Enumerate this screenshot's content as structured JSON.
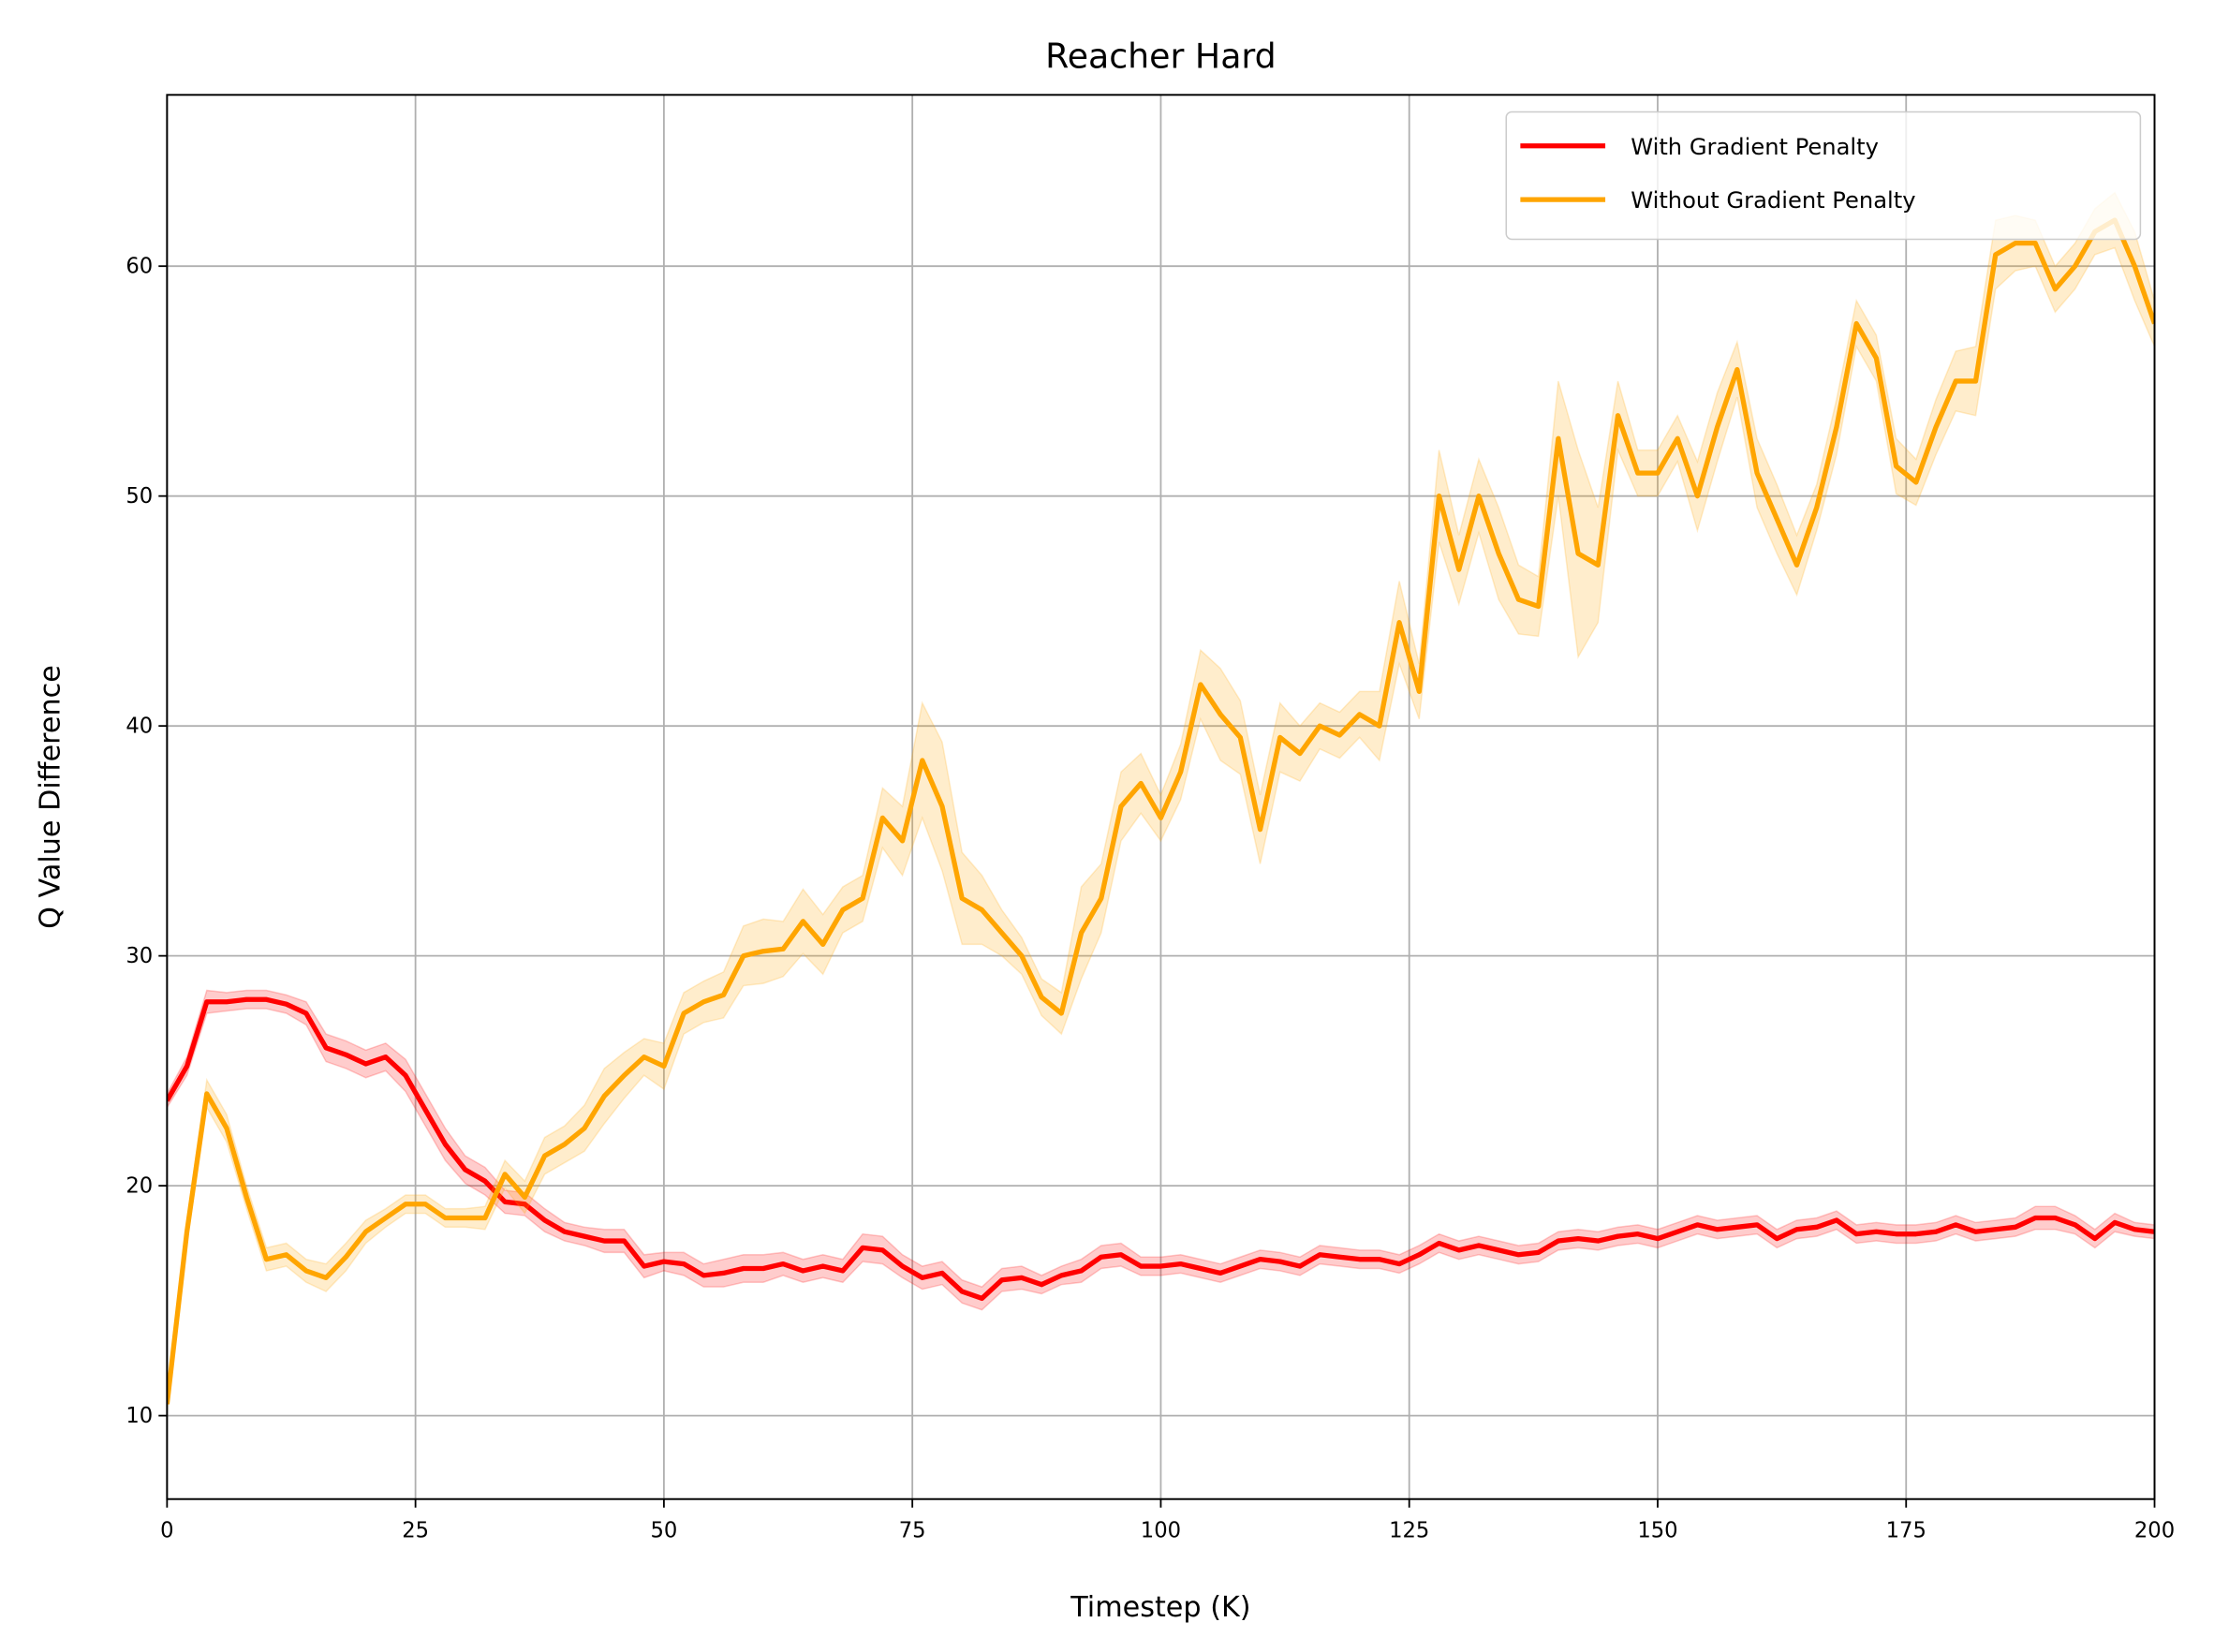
{
  "chart_data": {
    "type": "line",
    "title": "Reacher Hard",
    "x_label": "Timestep (K)",
    "y_label": "Q Value Difference",
    "x": [
      0,
      2,
      4,
      6,
      8,
      10,
      12,
      14,
      16,
      18,
      20,
      22,
      24,
      26,
      28,
      30,
      32,
      34,
      36,
      38,
      40,
      42,
      44,
      46,
      48,
      50,
      52,
      54,
      56,
      58,
      60,
      62,
      64,
      66,
      68,
      70,
      72,
      74,
      76,
      78,
      80,
      82,
      84,
      86,
      88,
      90,
      92,
      94,
      96,
      98,
      100,
      102,
      104,
      106,
      108,
      110,
      112,
      114,
      116,
      118,
      120,
      122,
      124,
      126,
      128,
      130,
      132,
      134,
      136,
      138,
      140,
      142,
      144,
      146,
      148,
      150,
      152,
      154,
      156,
      158,
      160,
      162,
      164,
      166,
      168,
      170,
      172,
      174,
      176,
      178,
      180,
      182,
      184,
      186,
      188,
      190,
      192,
      194,
      196,
      198,
      200
    ],
    "series": [
      {
        "name": "With Gradient Penalty",
        "color": "#ff0000",
        "values": [
          23.7,
          25.2,
          28.0,
          28.0,
          28.1,
          28.1,
          27.9,
          27.5,
          26.0,
          25.7,
          25.3,
          25.6,
          24.8,
          23.3,
          21.8,
          20.7,
          20.2,
          19.3,
          19.2,
          18.5,
          18.0,
          17.8,
          17.6,
          17.6,
          16.5,
          16.7,
          16.6,
          16.1,
          16.2,
          16.4,
          16.4,
          16.6,
          16.3,
          16.5,
          16.3,
          17.3,
          17.2,
          16.5,
          16.0,
          16.2,
          15.4,
          15.1,
          15.9,
          16.0,
          15.7,
          16.1,
          16.3,
          16.9,
          17.0,
          16.5,
          16.5,
          16.6,
          16.4,
          16.2,
          16.5,
          16.8,
          16.7,
          16.5,
          17.0,
          16.9,
          16.8,
          16.8,
          16.6,
          17.0,
          17.5,
          17.2,
          17.4,
          17.2,
          17.0,
          17.1,
          17.6,
          17.7,
          17.6,
          17.8,
          17.9,
          17.7,
          18.0,
          18.3,
          18.1,
          18.2,
          18.3,
          17.7,
          18.1,
          18.2,
          18.5,
          17.9,
          18.0,
          17.9,
          17.9,
          18.0,
          18.3,
          18.0,
          18.1,
          18.2,
          18.6,
          18.6,
          18.3,
          17.7,
          18.4,
          18.1,
          18.0
        ],
        "error": [
          0.3,
          0.4,
          0.5,
          0.4,
          0.4,
          0.4,
          0.4,
          0.5,
          0.6,
          0.6,
          0.6,
          0.6,
          0.7,
          0.7,
          0.7,
          0.6,
          0.6,
          0.5,
          0.5,
          0.5,
          0.4,
          0.4,
          0.5,
          0.5,
          0.5,
          0.4,
          0.5,
          0.5,
          0.6,
          0.6,
          0.6,
          0.5,
          0.5,
          0.5,
          0.5,
          0.6,
          0.6,
          0.5,
          0.5,
          0.5,
          0.5,
          0.5,
          0.5,
          0.5,
          0.4,
          0.4,
          0.5,
          0.5,
          0.5,
          0.4,
          0.4,
          0.4,
          0.4,
          0.4,
          0.4,
          0.4,
          0.4,
          0.4,
          0.4,
          0.4,
          0.4,
          0.4,
          0.4,
          0.4,
          0.4,
          0.4,
          0.4,
          0.4,
          0.4,
          0.4,
          0.4,
          0.4,
          0.4,
          0.4,
          0.4,
          0.4,
          0.4,
          0.4,
          0.4,
          0.4,
          0.4,
          0.4,
          0.4,
          0.4,
          0.4,
          0.4,
          0.4,
          0.4,
          0.4,
          0.4,
          0.4,
          0.4,
          0.4,
          0.4,
          0.5,
          0.5,
          0.4,
          0.4,
          0.4,
          0.3,
          0.3
        ]
      },
      {
        "name": "Without Gradient Penalty",
        "color": "#ffa500",
        "values": [
          10.5,
          18.0,
          24.0,
          22.5,
          19.5,
          16.8,
          17.0,
          16.3,
          16.0,
          16.9,
          18.0,
          18.6,
          19.2,
          19.2,
          18.6,
          18.6,
          18.6,
          20.5,
          19.5,
          21.3,
          21.8,
          22.5,
          23.9,
          24.8,
          25.6,
          25.2,
          27.5,
          28.0,
          28.3,
          30.0,
          30.2,
          30.3,
          31.5,
          30.5,
          32.0,
          32.5,
          36.0,
          35.0,
          38.5,
          36.5,
          32.5,
          32.0,
          31.0,
          30.0,
          28.2,
          27.5,
          31.0,
          32.5,
          36.5,
          37.5,
          36.0,
          38.0,
          41.8,
          40.5,
          39.5,
          35.5,
          39.5,
          38.8,
          40.0,
          39.6,
          40.5,
          40.0,
          44.5,
          41.5,
          50.0,
          46.8,
          50.0,
          47.5,
          45.5,
          45.2,
          52.5,
          47.5,
          47.0,
          53.5,
          51.0,
          51.0,
          52.5,
          50.0,
          53.0,
          55.5,
          51.0,
          49.0,
          47.0,
          49.5,
          53.0,
          57.5,
          56.0,
          51.3,
          50.6,
          53.0,
          55.0,
          55.0,
          60.5,
          61.0,
          61.0,
          59.0,
          60.0,
          61.5,
          62.0,
          60.0,
          57.5
        ],
        "error": [
          0.3,
          0.5,
          0.6,
          0.6,
          0.5,
          0.5,
          0.5,
          0.5,
          0.6,
          0.6,
          0.5,
          0.4,
          0.4,
          0.4,
          0.4,
          0.4,
          0.5,
          0.6,
          0.7,
          0.8,
          0.8,
          1.0,
          1.2,
          1.0,
          0.8,
          1.0,
          0.9,
          0.9,
          1.0,
          1.3,
          1.4,
          1.2,
          1.4,
          1.3,
          1.0,
          1.0,
          1.3,
          1.5,
          2.5,
          2.8,
          2.0,
          1.5,
          1.0,
          0.8,
          0.8,
          0.9,
          2.0,
          1.5,
          1.5,
          1.3,
          1.0,
          1.2,
          1.5,
          2.0,
          1.6,
          1.5,
          1.5,
          1.2,
          1.0,
          1.0,
          1.0,
          1.5,
          1.8,
          1.2,
          2.0,
          1.5,
          1.6,
          2.0,
          1.5,
          1.3,
          2.5,
          4.5,
          2.5,
          1.5,
          1.0,
          1.0,
          1.0,
          1.5,
          1.5,
          1.2,
          1.5,
          1.5,
          1.3,
          1.0,
          1.2,
          1.0,
          1.0,
          1.2,
          1.0,
          1.2,
          1.3,
          1.5,
          1.5,
          1.2,
          1.0,
          1.0,
          1.0,
          1.0,
          1.2,
          1.5,
          1.0
        ]
      }
    ],
    "xlim": [
      0,
      200
    ],
    "ylim": [
      6.37,
      67.45
    ],
    "xticks": [
      0,
      25,
      50,
      75,
      100,
      125,
      150,
      175,
      200
    ],
    "yticks": [
      10,
      20,
      30,
      40,
      50,
      60
    ],
    "grid": true,
    "legend": "upper right"
  }
}
